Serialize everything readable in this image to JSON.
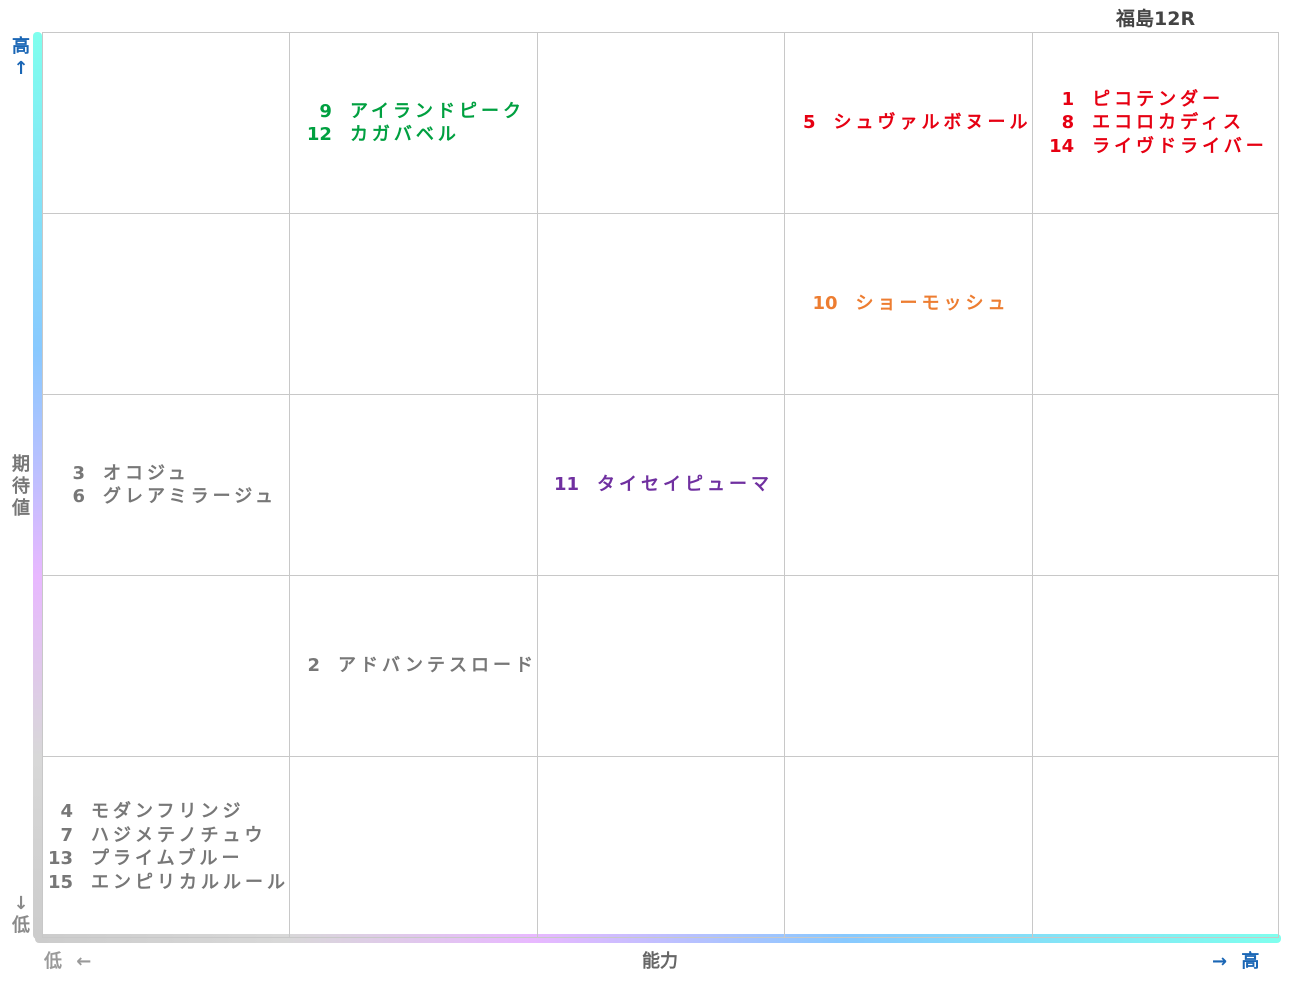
{
  "chart_data": {
    "type": "table",
    "title": "福島12R",
    "xlabel": "能力",
    "ylabel": "期待値",
    "x_low_label": "低 ←",
    "x_high_label": "→ 高",
    "y_high_label": [
      "高",
      "↑"
    ],
    "y_low_label": [
      "↓",
      "低"
    ],
    "y_label_chars": [
      "期",
      "待",
      "値"
    ],
    "grid_cols": 5,
    "grid_rows": 5,
    "colors": {
      "red": "#e60012",
      "orange": "#ed7d31",
      "green": "#00a040",
      "purple": "#7030a0",
      "gray": "#777777"
    },
    "cells": [
      {
        "row": 1,
        "col": 2,
        "color": "#00a040",
        "entries": [
          {
            "num": "9",
            "name": "アイランドピーク"
          },
          {
            "num": "12",
            "name": "カガバベル"
          }
        ]
      },
      {
        "row": 1,
        "col": 4,
        "color": "#e60012",
        "entries": [
          {
            "num": "5",
            "name": "シュヴァルボヌール"
          }
        ]
      },
      {
        "row": 1,
        "col": 5,
        "color": "#e60012",
        "entries": [
          {
            "num": "1",
            "name": "ピコテンダー"
          },
          {
            "num": "8",
            "name": "エコロカディス"
          },
          {
            "num": "14",
            "name": "ライヴドライバー"
          }
        ]
      },
      {
        "row": 2,
        "col": 4,
        "color": "#ed7d31",
        "entries": [
          {
            "num": "10",
            "name": "ショーモッシュ"
          }
        ]
      },
      {
        "row": 3,
        "col": 1,
        "color": "#777777",
        "entries": [
          {
            "num": "3",
            "name": "オコジュ"
          },
          {
            "num": "6",
            "name": "グレアミラージュ"
          }
        ]
      },
      {
        "row": 3,
        "col": 3,
        "color": "#7030a0",
        "entries": [
          {
            "num": "11",
            "name": "タイセイピューマ"
          }
        ]
      },
      {
        "row": 4,
        "col": 2,
        "color": "#777777",
        "entries": [
          {
            "num": "2",
            "name": "アドバンテスロード"
          }
        ]
      },
      {
        "row": 5,
        "col": 1,
        "color": "#777777",
        "entries": [
          {
            "num": "4",
            "name": "モダンフリンジ"
          },
          {
            "num": "7",
            "name": "ハジメテノチュウ"
          },
          {
            "num": "13",
            "name": "プライムブルー"
          },
          {
            "num": "15",
            "name": "エンピリカルルール"
          }
        ]
      }
    ]
  }
}
